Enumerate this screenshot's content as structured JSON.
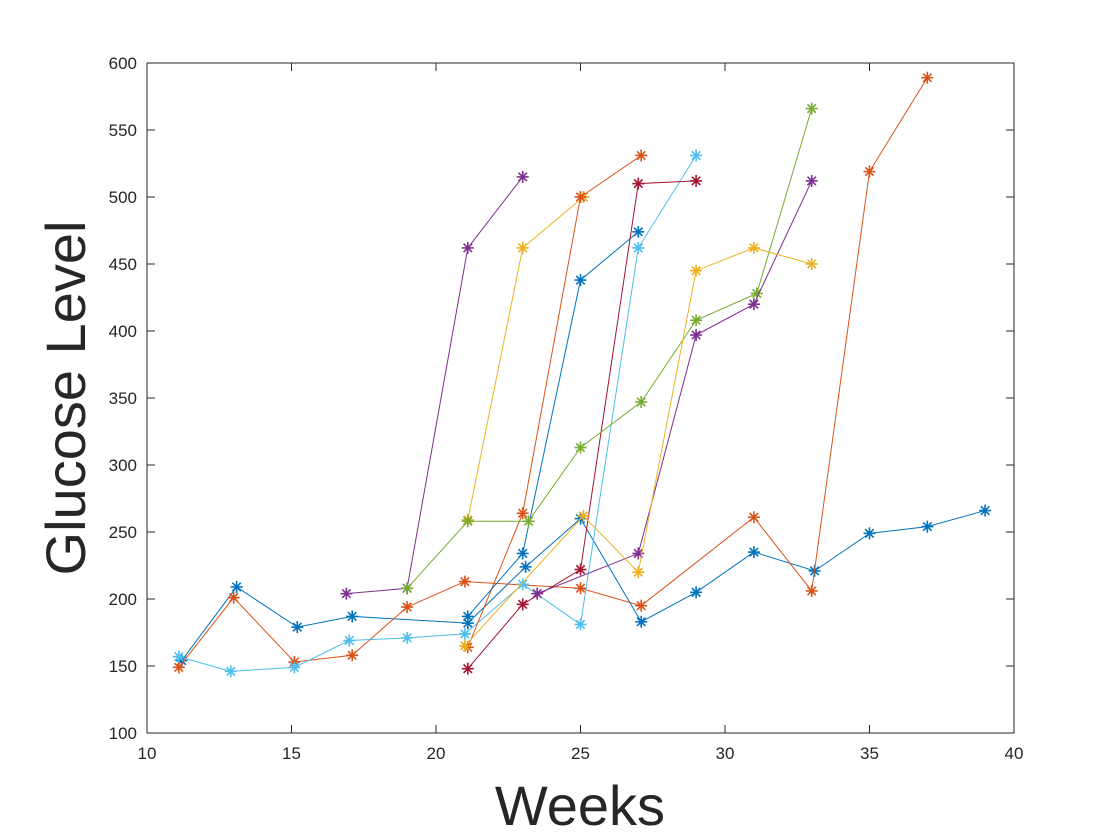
{
  "chart_data": {
    "type": "line",
    "xlabel": "Weeks",
    "ylabel": "Glucose Level",
    "xlim": [
      10,
      40
    ],
    "ylim": [
      100,
      600
    ],
    "xticks": [
      10,
      15,
      20,
      25,
      30,
      35,
      40
    ],
    "yticks": [
      100,
      150,
      200,
      250,
      300,
      350,
      400,
      450,
      500,
      550,
      600
    ],
    "grid": false,
    "marker": "asterisk",
    "series": [
      {
        "color": "#0072BD",
        "x": [
          11.2,
          13.1,
          15.2,
          17.1,
          21.1,
          23.1,
          25.0,
          27.1,
          29.0,
          31.0,
          33.1,
          35.0,
          37.0,
          39.0
        ],
        "y": [
          154,
          209,
          179,
          187,
          182,
          224,
          260,
          183,
          205,
          235,
          221,
          249,
          254,
          266
        ]
      },
      {
        "color": "#D95319",
        "x": [
          11.1,
          13.0,
          15.1,
          17.1,
          19.0,
          21.0,
          25.0,
          27.1,
          31.0,
          33.0,
          35.0,
          37.0
        ],
        "y": [
          149,
          201,
          153,
          158,
          194,
          213,
          208,
          195,
          261,
          206,
          519,
          589
        ]
      },
      {
        "color": "#4DBEEE",
        "x": [
          11.1,
          12.9,
          15.1,
          17.0,
          19.0,
          21.0,
          23.0,
          25.0,
          27.0,
          29.0
        ],
        "y": [
          157,
          146,
          149,
          169,
          171,
          174,
          211,
          181,
          462,
          531
        ]
      },
      {
        "color": "#7E2F8E",
        "x": [
          16.9,
          19.0,
          21.1,
          23.0
        ],
        "y": [
          204,
          208,
          462,
          515
        ]
      },
      {
        "color": "#EDB120",
        "x": [
          21.1,
          23.0,
          25.1
        ],
        "y": [
          259,
          462,
          500
        ]
      },
      {
        "color": "#D95319",
        "x": [
          21.1,
          23.0,
          25.0,
          27.1
        ],
        "y": [
          164,
          264,
          500,
          531
        ]
      },
      {
        "color": "#0072BD",
        "x": [
          21.1,
          23.0,
          25.0,
          27.0
        ],
        "y": [
          187,
          234,
          438,
          474
        ]
      },
      {
        "color": "#A2142F",
        "x": [
          21.1,
          23.0,
          25.0,
          27.0,
          29.0
        ],
        "y": [
          148,
          196,
          222,
          510,
          512
        ]
      },
      {
        "color": "#77AC30",
        "x": [
          19.0,
          21.1,
          23.2,
          25.0,
          27.1,
          29.0,
          31.1,
          33.0
        ],
        "y": [
          208,
          258,
          258,
          313,
          347,
          408,
          428,
          566
        ]
      },
      {
        "color": "#7E2F8E",
        "x": [
          23.5,
          27.0,
          29.0,
          31.0,
          33.0
        ],
        "y": [
          204,
          234,
          397,
          420,
          512
        ]
      },
      {
        "color": "#EDB120",
        "x": [
          21.0,
          25.1,
          27.0,
          29.0,
          31.0,
          33.0
        ],
        "y": [
          165,
          262,
          220,
          445,
          462,
          450
        ]
      }
    ]
  }
}
